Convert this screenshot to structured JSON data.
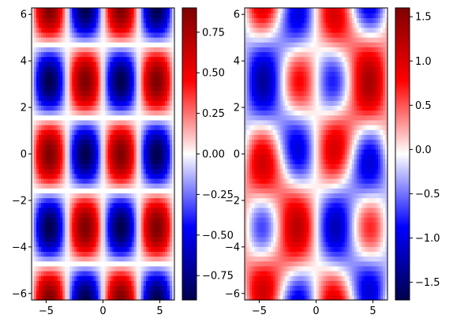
{
  "figure": {
    "background": "#ffffff",
    "colormap": "seismic",
    "colormap_stops": [
      "#00004c",
      "#0000ff",
      "#ffffff",
      "#ff0000",
      "#7f0000"
    ]
  },
  "chart_data": [
    {
      "type": "heatmap",
      "title": "",
      "xlabel": "",
      "ylabel": "",
      "function": "sin(x) * cos(y)",
      "x_range": [
        -6.28,
        6.28
      ],
      "y_range": [
        -6.28,
        6.28
      ],
      "grid_size": 60,
      "xticks": [
        -5,
        0,
        5
      ],
      "xtick_labels": [
        "−5",
        "0",
        "5"
      ],
      "yticks": [
        -6,
        -4,
        -2,
        0,
        2,
        4,
        6
      ],
      "ytick_labels": [
        "−6",
        "−4",
        "−2",
        "0",
        "2",
        "4",
        "6"
      ],
      "colorbar": {
        "range": [
          -1,
          1
        ],
        "ticks": [
          -0.75,
          -0.5,
          -0.25,
          0.0,
          0.25,
          0.5,
          0.75
        ],
        "tick_labels": [
          "−0.75",
          "−0.50",
          "−0.25",
          "0.00",
          "0.25",
          "0.50",
          "0.75"
        ]
      }
    },
    {
      "type": "heatmap",
      "title": "",
      "xlabel": "",
      "ylabel": "",
      "function": "sin(x) * cos(y) + 0.6 * sin(0.4*x) * sin(0.5*y) * (1 + 0.4*cos(y))",
      "x_range": [
        -6.28,
        6.28
      ],
      "y_range": [
        -6.28,
        6.28
      ],
      "grid_size": 60,
      "xticks": [
        -5,
        0,
        5
      ],
      "xtick_labels": [
        "−5",
        "0",
        "5"
      ],
      "yticks": [
        -6,
        -4,
        -2,
        0,
        2,
        4,
        6
      ],
      "ytick_labels": [
        "−6",
        "−4",
        "−2",
        "0",
        "2",
        "4",
        "6"
      ],
      "colorbar": {
        "range": [
          -1.7,
          1.6
        ],
        "ticks": [
          -1.5,
          -1.0,
          -0.5,
          0.0,
          0.5,
          1.0,
          1.5
        ],
        "tick_labels": [
          "−1.5",
          "−1.0",
          "−0.5",
          "0.0",
          "0.5",
          "1.0",
          "1.5"
        ]
      }
    }
  ]
}
